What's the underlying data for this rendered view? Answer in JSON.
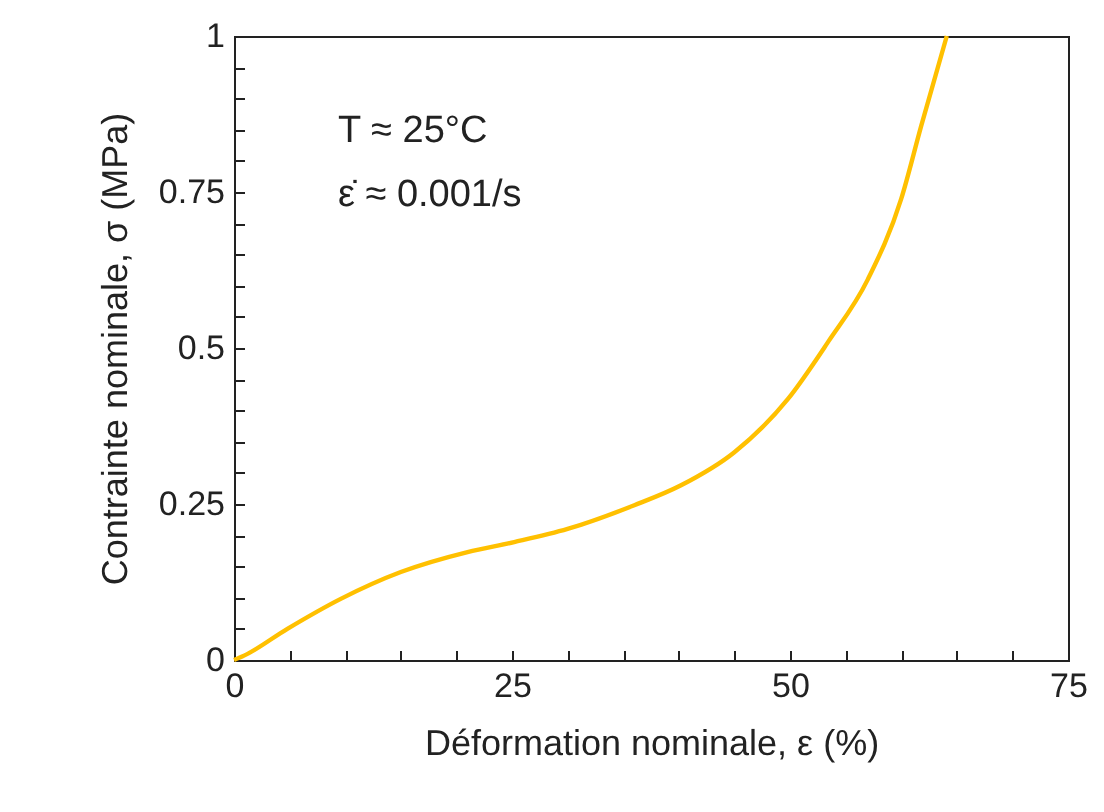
{
  "chart_data": {
    "type": "line",
    "xlabel": "Déformation nominale, ε (%)",
    "ylabel": "Contrainte nominale, σ (MPa)",
    "annotations": [
      "T ≈ 25°C",
      "ε̇ ≈ 0.001/s"
    ],
    "x": [
      0,
      0.9,
      4.8,
      9.6,
      15,
      21,
      25.2,
      30,
      36,
      40.2,
      45,
      49.8,
      53.4,
      57,
      60,
      61.8,
      64.1
    ],
    "series": [
      {
        "color": "#ffc000",
        "values": [
          0,
          0.007,
          0.05,
          0.098,
          0.141,
          0.173,
          0.189,
          0.21,
          0.248,
          0.28,
          0.333,
          0.418,
          0.509,
          0.61,
          0.739,
          0.856,
          1
        ]
      }
    ],
    "xlim": [
      0,
      75
    ],
    "ylim": [
      0,
      1
    ],
    "xticks": [
      0,
      {
        "value": 5,
        "label": null
      },
      {
        "value": 10,
        "label": null
      },
      {
        "value": 15,
        "label": null
      },
      {
        "value": 20,
        "label": null
      },
      25,
      {
        "value": 30,
        "label": null
      },
      {
        "value": 35,
        "label": null
      },
      {
        "value": 40,
        "label": null
      },
      {
        "value": 45,
        "label": null
      },
      50,
      {
        "value": 55,
        "label": null
      },
      {
        "value": 60,
        "label": null
      },
      {
        "value": 65,
        "label": null
      },
      {
        "value": 70,
        "label": null
      },
      75
    ],
    "yticks": [
      0,
      {
        "value": 0.05,
        "label": null
      },
      {
        "value": 0.1,
        "label": null
      },
      {
        "value": 0.15,
        "label": null
      },
      {
        "value": 0.2,
        "label": null
      },
      0.25,
      {
        "value": 0.3,
        "label": null
      },
      {
        "value": 0.35,
        "label": null
      },
      {
        "value": 0.4,
        "label": null
      },
      {
        "value": 0.45,
        "label": null
      },
      0.5,
      {
        "value": 0.55,
        "label": null
      },
      {
        "value": 0.6,
        "label": null
      },
      {
        "value": 0.65,
        "label": null
      },
      {
        "value": 0.7,
        "label": null
      },
      0.75,
      {
        "value": 0.8,
        "label": null
      },
      {
        "value": 0.85,
        "label": null
      },
      {
        "value": 0.9,
        "label": null
      },
      {
        "value": 0.95,
        "label": null
      },
      1
    ],
    "grid": false,
    "marker": "none",
    "line_style": "solid"
  }
}
